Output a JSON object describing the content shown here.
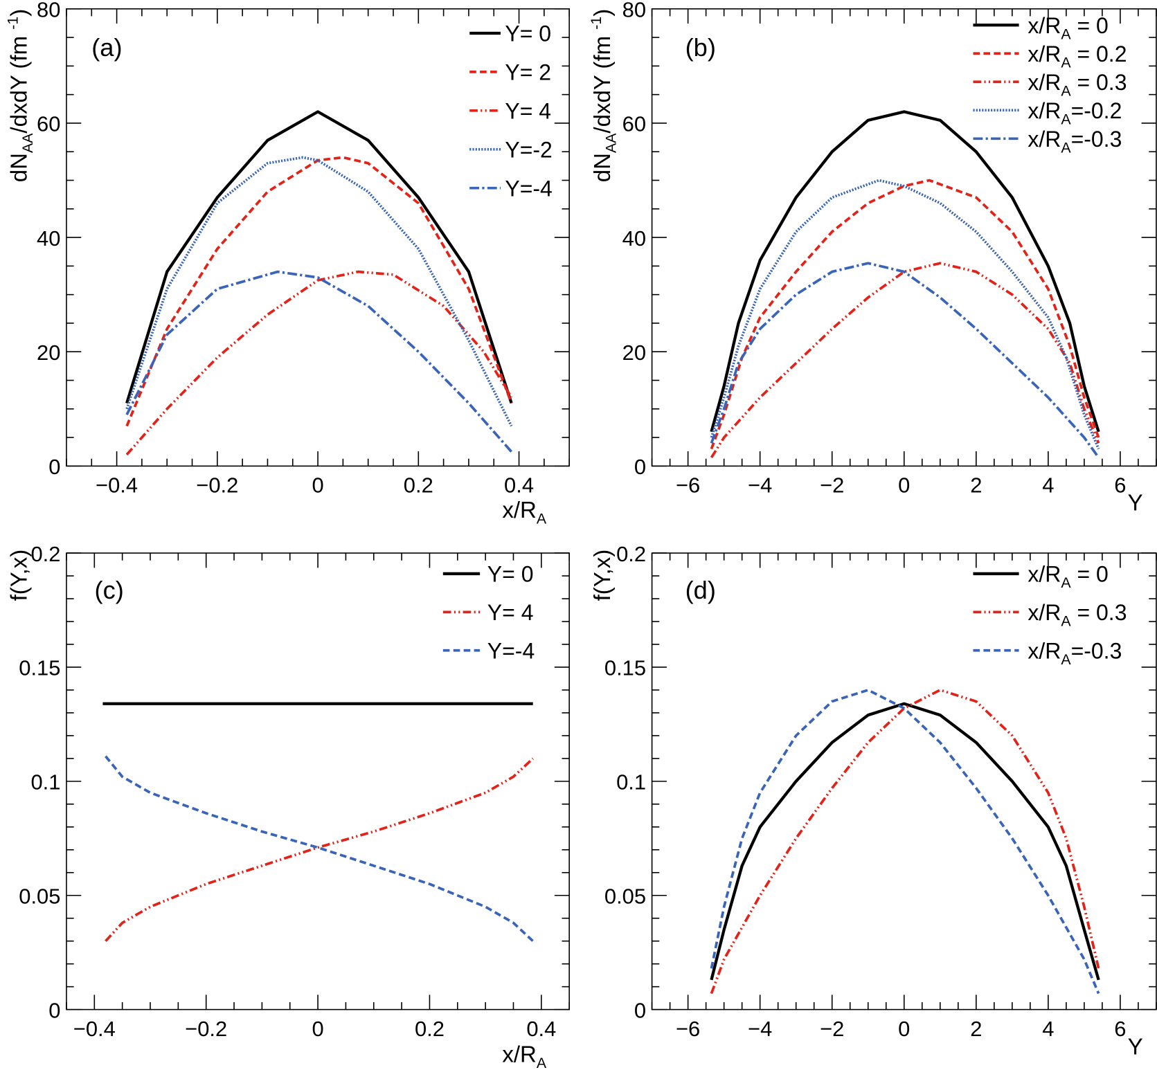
{
  "chart_data": [
    {
      "type": "line",
      "panel_label": "(a)",
      "xlabel": {
        "main": "x/R",
        "sub": "A",
        "rest": ""
      },
      "ylabel": {
        "p1": "dN",
        "sub": "AA",
        "p2": "/dxdY (fm ",
        "sup": "-1",
        "p3": ")"
      },
      "xlim": [
        -0.5,
        0.5
      ],
      "ylim": [
        0,
        80
      ],
      "xticks": [
        -0.4,
        -0.2,
        0,
        0.2,
        0.4
      ],
      "xtick_labels": [
        "−0.4",
        "−0.2",
        "0",
        "0.2",
        "0.4"
      ],
      "xminor": 0.05,
      "yticks": [
        0,
        20,
        40,
        60,
        80
      ],
      "ytick_labels": [
        "0",
        "20",
        "40",
        "60",
        "80"
      ],
      "yminor": 5,
      "legend_position": "top-right",
      "series": [
        {
          "name": {
            "main": "Y= 0"
          },
          "color": "#000000",
          "style": "solid",
          "x": [
            -0.38,
            -0.3,
            -0.2,
            -0.1,
            0,
            0.1,
            0.2,
            0.3,
            0.385
          ],
          "y": [
            11,
            34,
            47,
            57,
            62,
            57,
            47,
            34,
            11
          ]
        },
        {
          "name": {
            "main": "Y= 2"
          },
          "color": "#e2231a",
          "style": "dashed",
          "x": [
            -0.38,
            -0.3,
            -0.2,
            -0.1,
            0,
            0.05,
            0.1,
            0.2,
            0.3,
            0.385
          ],
          "y": [
            7,
            24,
            38,
            48,
            53.5,
            54,
            53,
            46,
            31,
            11
          ]
        },
        {
          "name": {
            "main": "Y= 4"
          },
          "color": "#e2231a",
          "style": "dashdotdot",
          "x": [
            -0.38,
            -0.3,
            -0.2,
            -0.1,
            0,
            0.08,
            0.15,
            0.25,
            0.33,
            0.385
          ],
          "y": [
            2,
            10,
            19,
            26.5,
            32.5,
            34,
            33.5,
            28,
            20,
            12
          ]
        },
        {
          "name": {
            "main": "Y=-2"
          },
          "color": "#3a64b8",
          "style": "dotted",
          "x": [
            -0.38,
            -0.3,
            -0.2,
            -0.1,
            -0.03,
            0,
            0.1,
            0.2,
            0.3,
            0.385
          ],
          "y": [
            10,
            31,
            46,
            53,
            54,
            53.5,
            48,
            38,
            22,
            7
          ]
        },
        {
          "name": {
            "main": "Y=-4"
          },
          "color": "#3a64b8",
          "style": "dashdot",
          "x": [
            -0.38,
            -0.3,
            -0.2,
            -0.08,
            0,
            0.1,
            0.2,
            0.3,
            0.385
          ],
          "y": [
            9,
            23,
            31,
            34,
            33,
            28,
            20,
            11,
            2.5
          ]
        }
      ]
    },
    {
      "type": "line",
      "panel_label": "(b)",
      "xlabel": {
        "main": "Y",
        "sub": "",
        "rest": ""
      },
      "ylabel": {
        "p1": "dN",
        "sub": "AA",
        "p2": "/dxdY (fm ",
        "sup": "-1",
        "p3": ")"
      },
      "xlim": [
        -7,
        7
      ],
      "ylim": [
        0,
        80
      ],
      "xticks": [
        -6,
        -4,
        -2,
        0,
        2,
        4,
        6
      ],
      "xtick_labels": [
        "−6",
        "−4",
        "−2",
        "0",
        "2",
        "4",
        "6"
      ],
      "xminor": 0.5,
      "yticks": [
        0,
        20,
        40,
        60,
        80
      ],
      "ytick_labels": [
        "0",
        "20",
        "40",
        "60",
        "80"
      ],
      "yminor": 5,
      "legend_position": "top-right",
      "series": [
        {
          "name": {
            "main": "x/R",
            "sub": "A",
            "rest": " = 0"
          },
          "color": "#000000",
          "style": "solid",
          "x": [
            -5.35,
            -5,
            -4.6,
            -4,
            -3,
            -2,
            -1,
            0,
            1,
            2,
            3,
            4,
            4.6,
            5,
            5.4
          ],
          "y": [
            6,
            14,
            25,
            36,
            47,
            55,
            60.5,
            62,
            60.5,
            55,
            47,
            35,
            25,
            14,
            6
          ]
        },
        {
          "name": {
            "main": "x/R",
            "sub": "A",
            "rest": " = 0.2"
          },
          "color": "#e2231a",
          "style": "dashed",
          "x": [
            -5.35,
            -5,
            -4.5,
            -4,
            -3,
            -2,
            -1,
            0,
            0.7,
            2,
            3,
            4,
            4.6,
            5,
            5.4
          ],
          "y": [
            3,
            9,
            19,
            26,
            34,
            41,
            46,
            49,
            50,
            47,
            41,
            31,
            21,
            12,
            5
          ]
        },
        {
          "name": {
            "main": "x/R",
            "sub": "A",
            "rest": " = 0.3"
          },
          "color": "#e2231a",
          "style": "dashdotdot",
          "x": [
            -5.35,
            -5,
            -4,
            -3,
            -2,
            -1,
            0,
            1,
            2,
            3,
            4,
            4.6,
            5,
            5.4
          ],
          "y": [
            1.5,
            5,
            12,
            18,
            24,
            29.5,
            34,
            35.5,
            34,
            30,
            24,
            18,
            10,
            4
          ]
        },
        {
          "name": {
            "main": "x/R",
            "sub": "A",
            "rest": "=-0.2"
          },
          "color": "#3a64b8",
          "style": "dotted",
          "x": [
            -5.35,
            -5,
            -4.6,
            -4,
            -3,
            -2,
            -0.7,
            0,
            1,
            2,
            3,
            4,
            4.5,
            5,
            5.4
          ],
          "y": [
            5,
            12,
            21,
            31,
            41,
            47,
            50,
            49,
            46,
            41,
            34,
            26,
            19,
            9,
            3
          ]
        },
        {
          "name": {
            "main": "x/R",
            "sub": "A",
            "rest": "=-0.3"
          },
          "color": "#3a64b8",
          "style": "dashdot",
          "x": [
            -5.35,
            -5,
            -4.6,
            -4,
            -3,
            -2,
            -1,
            0,
            1,
            2,
            3,
            4,
            5,
            5.4
          ],
          "y": [
            4,
            10,
            18,
            24,
            30,
            34,
            35.5,
            34,
            29.5,
            24,
            18,
            12,
            5,
            1.5
          ]
        }
      ]
    },
    {
      "type": "line",
      "panel_label": "(c)",
      "xlabel": {
        "main": "x/R",
        "sub": "A",
        "rest": ""
      },
      "ylabel": {
        "p1": "f(Y,x)",
        "sub": "",
        "p2": "",
        "sup": "",
        "p3": ""
      },
      "xlim": [
        -0.45,
        0.45
      ],
      "ylim": [
        0,
        0.2
      ],
      "xticks": [
        -0.4,
        -0.2,
        0,
        0.2,
        0.4
      ],
      "xtick_labels": [
        "−0.4",
        "−0.2",
        "0",
        "0.2",
        "0.4"
      ],
      "xminor": 0.05,
      "yticks": [
        0,
        0.05,
        0.1,
        0.15,
        0.2
      ],
      "ytick_labels": [
        "0",
        "0.05",
        "0.1",
        "0.15",
        "0.2"
      ],
      "yminor": 0.01,
      "legend_position": "top-right",
      "series": [
        {
          "name": {
            "main": "Y= 0"
          },
          "color": "#000000",
          "style": "solid",
          "x": [
            -0.385,
            0.385
          ],
          "y": [
            0.134,
            0.134
          ]
        },
        {
          "name": {
            "main": "Y= 4"
          },
          "color": "#e2231a",
          "style": "dashdotdot",
          "x": [
            -0.38,
            -0.35,
            -0.3,
            -0.2,
            -0.1,
            0,
            0.1,
            0.2,
            0.3,
            0.35,
            0.385
          ],
          "y": [
            0.03,
            0.038,
            0.045,
            0.055,
            0.063,
            0.071,
            0.078,
            0.086,
            0.095,
            0.102,
            0.11
          ]
        },
        {
          "name": {
            "main": "Y=-4"
          },
          "color": "#3a64b8",
          "style": "dashed",
          "x": [
            -0.38,
            -0.35,
            -0.3,
            -0.2,
            -0.1,
            0,
            0.1,
            0.2,
            0.3,
            0.35,
            0.385
          ],
          "y": [
            0.111,
            0.102,
            0.095,
            0.086,
            0.078,
            0.071,
            0.063,
            0.055,
            0.045,
            0.038,
            0.03
          ]
        }
      ]
    },
    {
      "type": "line",
      "panel_label": "(d)",
      "xlabel": {
        "main": "Y",
        "sub": "",
        "rest": ""
      },
      "ylabel": {
        "p1": "f(Y,x)",
        "sub": "",
        "p2": "",
        "sup": "",
        "p3": ""
      },
      "xlim": [
        -7,
        7
      ],
      "ylim": [
        0,
        0.2
      ],
      "xticks": [
        -6,
        -4,
        -2,
        0,
        2,
        4,
        6
      ],
      "xtick_labels": [
        "−6",
        "−4",
        "−2",
        "0",
        "2",
        "4",
        "6"
      ],
      "xminor": 0.5,
      "yticks": [
        0,
        0.05,
        0.1,
        0.15,
        0.2
      ],
      "ytick_labels": [
        "0",
        "0.05",
        "0.1",
        "0.15",
        "0.2"
      ],
      "yminor": 0.01,
      "legend_position": "top-right",
      "series": [
        {
          "name": {
            "main": "x/R",
            "sub": "A",
            "rest": " = 0"
          },
          "color": "#000000",
          "style": "solid",
          "x": [
            -5.35,
            -5,
            -4.5,
            -4,
            -3,
            -2,
            -1,
            0,
            1,
            2,
            3,
            4,
            4.5,
            5,
            5.4
          ],
          "y": [
            0.013,
            0.035,
            0.063,
            0.08,
            0.1,
            0.117,
            0.129,
            0.134,
            0.129,
            0.117,
            0.1,
            0.08,
            0.063,
            0.035,
            0.013
          ]
        },
        {
          "name": {
            "main": "x/R",
            "sub": "A",
            "rest": " = 0.3"
          },
          "color": "#e2231a",
          "style": "dashdotdot",
          "x": [
            -5.35,
            -5,
            -4,
            -3,
            -2,
            -1,
            0,
            1,
            2,
            3,
            4,
            4.5,
            5,
            5.4
          ],
          "y": [
            0.007,
            0.022,
            0.05,
            0.075,
            0.097,
            0.117,
            0.132,
            0.14,
            0.135,
            0.12,
            0.095,
            0.075,
            0.045,
            0.018
          ]
        },
        {
          "name": {
            "main": "x/R",
            "sub": "A",
            "rest": "=-0.3"
          },
          "color": "#3a64b8",
          "style": "dashed",
          "x": [
            -5.35,
            -5,
            -4.5,
            -4,
            -3,
            -2,
            -1,
            0,
            1,
            2,
            3,
            4,
            5,
            5.4
          ],
          "y": [
            0.018,
            0.045,
            0.075,
            0.095,
            0.12,
            0.135,
            0.14,
            0.132,
            0.117,
            0.097,
            0.075,
            0.05,
            0.022,
            0.007
          ]
        }
      ]
    }
  ]
}
